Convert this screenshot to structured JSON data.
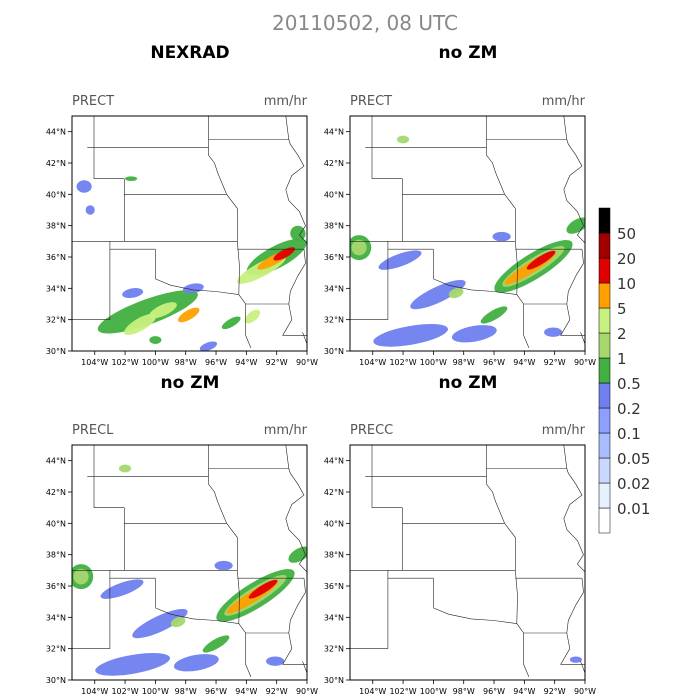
{
  "title": "20110502, 08 UTC",
  "panels": [
    {
      "heading": "NEXRAD",
      "field": "PRECT",
      "units": "mm/hr"
    },
    {
      "heading": "no ZM",
      "field": "PRECT",
      "units": "mm/hr"
    },
    {
      "heading": "no ZM",
      "field": "PRECL",
      "units": "mm/hr"
    },
    {
      "heading": "no ZM",
      "field": "PRECC",
      "units": "mm/hr"
    }
  ],
  "chart_data": {
    "type": "heatmap",
    "x_ticks": [
      "104°W",
      "102°W",
      "100°W",
      "98°W",
      "96°W",
      "94°W",
      "92°W",
      "90°W"
    ],
    "y_ticks": [
      "30°N",
      "32°N",
      "34°N",
      "36°N",
      "38°N",
      "40°N",
      "42°N",
      "44°N"
    ],
    "xlim": [
      -105.5,
      -90
    ],
    "ylim": [
      30,
      45
    ],
    "legend": {
      "levels": [
        "0.01",
        "0.02",
        "0.05",
        "0.1",
        "0.2",
        "0.5",
        "1",
        "2",
        "5",
        "10",
        "20",
        "50"
      ],
      "colors": [
        "#ffffff",
        "#e6f0ff",
        "#c8d8ff",
        "#a8bcff",
        "#8ea0ff",
        "#6f7fef",
        "#40b040",
        "#a6d86e",
        "#c8f080",
        "#ffa000",
        "#e00000",
        "#a00000",
        "#000000"
      ]
    },
    "blobs": [
      [
        [
          -92.0,
          36.0,
          2.2,
          0.7,
          -28,
          0.5
        ],
        [
          -93.0,
          35.2,
          1.8,
          0.45,
          -28,
          2
        ],
        [
          -92.2,
          35.8,
          1.2,
          0.3,
          -28,
          5
        ],
        [
          -91.5,
          36.2,
          0.8,
          0.25,
          -28,
          10
        ],
        [
          -100.5,
          32.5,
          3.5,
          0.8,
          -20,
          0.5
        ],
        [
          -101.0,
          31.7,
          1.2,
          0.4,
          -30,
          2
        ],
        [
          -99.5,
          32.6,
          1.0,
          0.35,
          -25,
          2
        ],
        [
          -97.8,
          32.3,
          0.8,
          0.3,
          -30,
          5
        ],
        [
          -96.5,
          30.3,
          0.6,
          0.25,
          -20,
          0.2
        ],
        [
          -95.0,
          31.8,
          0.7,
          0.25,
          -30,
          0.5
        ],
        [
          -93.6,
          32.2,
          0.6,
          0.3,
          -40,
          2
        ],
        [
          -97.5,
          34.0,
          0.7,
          0.3,
          -10,
          0.2
        ],
        [
          -101.5,
          33.7,
          0.7,
          0.3,
          -10,
          0.2
        ],
        [
          -101.6,
          41.0,
          0.4,
          0.15,
          0,
          0.5
        ],
        [
          -104.3,
          39.0,
          0.3,
          0.3,
          0,
          0.2
        ],
        [
          -90.6,
          37.5,
          0.5,
          0.5,
          -30,
          0.5
        ],
        [
          -104.7,
          40.5,
          0.5,
          0.4,
          0,
          0.2
        ],
        [
          -100.0,
          30.7,
          0.4,
          0.25,
          0,
          0.5
        ]
      ],
      [
        [
          -93.4,
          35.4,
          3.0,
          0.8,
          -32,
          0.5
        ],
        [
          -93.4,
          35.4,
          2.4,
          0.5,
          -32,
          1
        ],
        [
          -93.6,
          35.3,
          2.0,
          0.35,
          -32,
          5
        ],
        [
          -92.9,
          35.8,
          1.1,
          0.25,
          -32,
          10
        ],
        [
          -104.9,
          36.6,
          0.8,
          0.8,
          0,
          0.5
        ],
        [
          -104.9,
          36.6,
          0.5,
          0.5,
          0,
          1
        ],
        [
          -102.2,
          35.8,
          1.5,
          0.4,
          -20,
          0.2
        ],
        [
          -99.7,
          33.6,
          2.0,
          0.5,
          -25,
          0.2
        ],
        [
          -101.5,
          31.0,
          2.5,
          0.6,
          -10,
          0.2
        ],
        [
          -97.3,
          31.1,
          1.5,
          0.5,
          -10,
          0.2
        ],
        [
          -102.0,
          43.5,
          0.4,
          0.25,
          0,
          1
        ],
        [
          -98.5,
          33.7,
          0.5,
          0.3,
          -20,
          1
        ],
        [
          -96.0,
          32.3,
          1.0,
          0.3,
          -30,
          0.5
        ],
        [
          -95.5,
          37.3,
          0.6,
          0.3,
          0,
          0.2
        ],
        [
          -90.5,
          38.0,
          0.8,
          0.4,
          -30,
          0.5
        ],
        [
          -92.1,
          31.2,
          0.6,
          0.3,
          0,
          0.2
        ]
      ],
      [
        [
          -93.4,
          35.4,
          3.0,
          0.8,
          -32,
          0.5
        ],
        [
          -93.4,
          35.4,
          2.4,
          0.5,
          -32,
          1
        ],
        [
          -93.6,
          35.3,
          2.0,
          0.35,
          -32,
          5
        ],
        [
          -92.9,
          35.8,
          1.1,
          0.25,
          -32,
          10
        ],
        [
          -104.9,
          36.6,
          0.8,
          0.8,
          0,
          0.5
        ],
        [
          -104.9,
          36.6,
          0.5,
          0.5,
          0,
          1
        ],
        [
          -102.2,
          35.8,
          1.5,
          0.4,
          -20,
          0.2
        ],
        [
          -99.7,
          33.6,
          2.0,
          0.5,
          -25,
          0.2
        ],
        [
          -101.5,
          31.0,
          2.5,
          0.6,
          -10,
          0.2
        ],
        [
          -97.3,
          31.1,
          1.5,
          0.5,
          -10,
          0.2
        ],
        [
          -102.0,
          43.5,
          0.4,
          0.25,
          0,
          1
        ],
        [
          -98.5,
          33.7,
          0.5,
          0.3,
          -20,
          1
        ],
        [
          -96.0,
          32.3,
          1.0,
          0.3,
          -30,
          0.5
        ],
        [
          -95.5,
          37.3,
          0.6,
          0.3,
          0,
          0.2
        ],
        [
          -90.5,
          38.0,
          0.8,
          0.4,
          -30,
          0.5
        ],
        [
          -92.1,
          31.2,
          0.6,
          0.3,
          0,
          0.2
        ]
      ],
      [
        [
          -90.6,
          31.3,
          0.4,
          0.2,
          0,
          0.2
        ]
      ]
    ]
  }
}
